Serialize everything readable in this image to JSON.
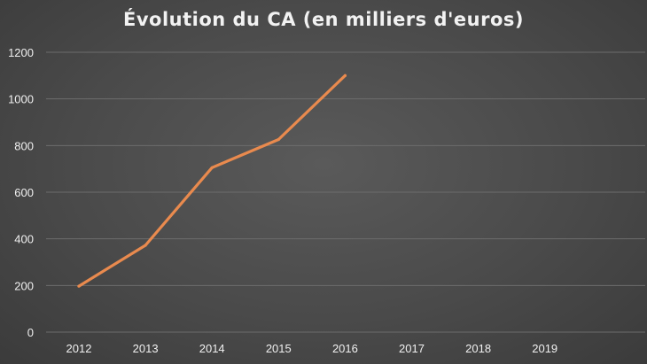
{
  "chart_data": {
    "type": "line",
    "title": "Évolution du CA (en milliers d'euros)",
    "categories": [
      "2012",
      "2013",
      "2014",
      "2015",
      "2016",
      "2017",
      "2018",
      "2019"
    ],
    "series": [
      {
        "values": [
          197,
          372,
          705,
          826,
          1100,
          null,
          null,
          null
        ]
      }
    ],
    "ylim": [
      0,
      1200
    ],
    "yticks": [
      0,
      200,
      400,
      600,
      800,
      1000,
      1200
    ],
    "grid": true,
    "legend": "none",
    "colors": {
      "line": "#e98a4e",
      "grid": "#6c6c6c",
      "text": "#f0f0f0"
    }
  }
}
